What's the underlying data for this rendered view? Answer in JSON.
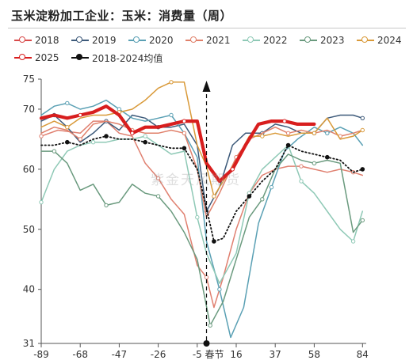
{
  "title": "玉米淀粉加工企业：玉米：消费量（周）",
  "watermark": "紫金天风期货",
  "legend": [
    {
      "name": "2018",
      "color": "#d84a4a",
      "style": "circle"
    },
    {
      "name": "2019",
      "color": "#3d5a7a",
      "style": "circle"
    },
    {
      "name": "2020",
      "color": "#5aa0b4",
      "style": "circle"
    },
    {
      "name": "2021",
      "color": "#e0806a",
      "style": "circle"
    },
    {
      "name": "2022",
      "color": "#8fc9b6",
      "style": "circle"
    },
    {
      "name": "2023",
      "color": "#6a9a7e",
      "style": "circle"
    },
    {
      "name": "2024",
      "color": "#d99a3a",
      "style": "circle"
    },
    {
      "name": "2025",
      "color": "#d81e1e",
      "style": "circle"
    },
    {
      "name": "2018-2024均值",
      "color": "#111111",
      "style": "dotted"
    }
  ],
  "chart_data": {
    "type": "line",
    "xlabel": "",
    "ylabel": "",
    "xlim": [
      -89,
      86
    ],
    "ylim": [
      31,
      75
    ],
    "xticks": [
      "-89",
      "-68",
      "-47",
      "-26",
      "-5",
      "16",
      "37",
      "58",
      "84"
    ],
    "xtick_values": [
      -89,
      -68,
      -47,
      -26,
      -5,
      16,
      37,
      58,
      84
    ],
    "yticks": [
      31,
      40,
      50,
      60,
      70,
      75
    ],
    "event_label": "春节",
    "event_x": 0,
    "series": [
      {
        "name": "2018",
        "color": "#e08070",
        "width": 1.5,
        "points": [
          [
            -89,
            65.5
          ],
          [
            -80,
            66.5
          ],
          [
            -68,
            66
          ],
          [
            -61,
            68
          ],
          [
            -54,
            68
          ],
          [
            -47,
            66
          ],
          [
            -40,
            65.5
          ],
          [
            -33,
            61
          ],
          [
            -26,
            58.5
          ],
          [
            -19,
            55
          ],
          [
            -12,
            52.5
          ],
          [
            -5,
            44
          ],
          [
            0,
            42
          ],
          [
            4,
            37
          ],
          [
            9,
            42
          ],
          [
            16,
            50
          ],
          [
            23,
            56
          ],
          [
            30,
            59
          ],
          [
            37,
            60
          ],
          [
            44,
            60.5
          ],
          [
            51,
            60.5
          ],
          [
            58,
            60
          ],
          [
            65,
            59.5
          ],
          [
            72,
            60
          ],
          [
            79,
            59.5
          ],
          [
            84,
            59
          ]
        ]
      },
      {
        "name": "2019",
        "color": "#3d5a7a",
        "width": 1.5,
        "points": [
          [
            -89,
            68
          ],
          [
            -82,
            69
          ],
          [
            -75,
            67
          ],
          [
            -68,
            64.5
          ],
          [
            -61,
            66
          ],
          [
            -54,
            68
          ],
          [
            -47,
            66.5
          ],
          [
            -40,
            69
          ],
          [
            -33,
            68.5
          ],
          [
            -26,
            67
          ],
          [
            -19,
            67
          ],
          [
            -12,
            67.5
          ],
          [
            -5,
            64
          ],
          [
            0,
            53
          ],
          [
            7,
            57
          ],
          [
            14,
            64
          ],
          [
            21,
            66
          ],
          [
            30,
            66
          ],
          [
            37,
            67.5
          ],
          [
            44,
            67
          ],
          [
            51,
            66
          ],
          [
            58,
            66
          ],
          [
            65,
            68.5
          ],
          [
            72,
            69
          ],
          [
            79,
            69
          ],
          [
            84,
            68.5
          ]
        ]
      },
      {
        "name": "2020",
        "color": "#5aa0b4",
        "width": 1.5,
        "points": [
          [
            -89,
            69
          ],
          [
            -82,
            70.5
          ],
          [
            -75,
            71
          ],
          [
            -68,
            70
          ],
          [
            -61,
            70.5
          ],
          [
            -54,
            71.5
          ],
          [
            -47,
            70
          ],
          [
            -40,
            68.5
          ],
          [
            -33,
            68
          ],
          [
            -26,
            68.5
          ],
          [
            -19,
            69
          ],
          [
            -12,
            66
          ],
          [
            -5,
            62
          ],
          [
            0,
            48
          ],
          [
            7,
            40
          ],
          [
            13,
            32
          ],
          [
            20,
            37
          ],
          [
            28,
            51
          ],
          [
            35,
            57
          ],
          [
            42,
            63
          ],
          [
            49,
            65
          ],
          [
            58,
            67
          ],
          [
            65,
            66
          ],
          [
            72,
            67
          ],
          [
            79,
            66
          ],
          [
            84,
            64
          ]
        ]
      },
      {
        "name": "2021",
        "color": "#e0806a",
        "width": 1.5,
        "points": [
          [
            -89,
            66
          ],
          [
            -82,
            67
          ],
          [
            -75,
            66.5
          ],
          [
            -68,
            65
          ],
          [
            -61,
            67.5
          ],
          [
            -54,
            68
          ],
          [
            -47,
            67.5
          ],
          [
            -40,
            66.5
          ],
          [
            -33,
            66
          ],
          [
            -26,
            66
          ],
          [
            -19,
            66.5
          ],
          [
            -12,
            66
          ],
          [
            -5,
            60
          ],
          [
            0,
            52
          ],
          [
            7,
            56
          ],
          [
            16,
            62
          ],
          [
            23,
            65
          ],
          [
            30,
            66
          ],
          [
            37,
            67
          ],
          [
            44,
            66
          ],
          [
            51,
            66.5
          ],
          [
            58,
            66
          ],
          [
            65,
            66.5
          ],
          [
            72,
            65.5
          ],
          [
            79,
            66
          ],
          [
            84,
            66.5
          ]
        ]
      },
      {
        "name": "2022",
        "color": "#8fc9b6",
        "width": 1.5,
        "points": [
          [
            -89,
            54.5
          ],
          [
            -82,
            60
          ],
          [
            -75,
            63
          ],
          [
            -68,
            64
          ],
          [
            -61,
            64.5
          ],
          [
            -54,
            64.5
          ],
          [
            -47,
            65
          ],
          [
            -40,
            65
          ],
          [
            -33,
            65.5
          ],
          [
            -26,
            64
          ],
          [
            -19,
            62.5
          ],
          [
            -12,
            63
          ],
          [
            -5,
            52
          ],
          [
            0,
            46
          ],
          [
            7,
            41
          ],
          [
            16,
            46
          ],
          [
            23,
            56
          ],
          [
            30,
            60
          ],
          [
            37,
            62
          ],
          [
            44,
            64
          ],
          [
            51,
            58
          ],
          [
            58,
            56
          ],
          [
            65,
            53
          ],
          [
            72,
            50
          ],
          [
            79,
            48
          ],
          [
            84,
            53
          ]
        ]
      },
      {
        "name": "2023",
        "color": "#6a9a7e",
        "width": 1.5,
        "points": [
          [
            -89,
            63
          ],
          [
            -82,
            63
          ],
          [
            -75,
            61
          ],
          [
            -68,
            56.5
          ],
          [
            -61,
            57.5
          ],
          [
            -54,
            54
          ],
          [
            -47,
            54.5
          ],
          [
            -40,
            57.5
          ],
          [
            -33,
            56
          ],
          [
            -26,
            55.5
          ],
          [
            -19,
            53
          ],
          [
            -12,
            49.5
          ],
          [
            -5,
            45
          ],
          [
            2,
            34
          ],
          [
            9,
            38
          ],
          [
            16,
            45
          ],
          [
            23,
            52
          ],
          [
            30,
            55
          ],
          [
            37,
            60
          ],
          [
            44,
            62.5
          ],
          [
            51,
            61.5
          ],
          [
            58,
            61
          ],
          [
            65,
            61.5
          ],
          [
            72,
            61
          ],
          [
            79,
            49.5
          ],
          [
            84,
            51.5
          ]
        ]
      },
      {
        "name": "2024",
        "color": "#d99a3a",
        "width": 1.5,
        "points": [
          [
            -89,
            67
          ],
          [
            -82,
            68
          ],
          [
            -75,
            67
          ],
          [
            -68,
            68.5
          ],
          [
            -61,
            69
          ],
          [
            -54,
            69
          ],
          [
            -47,
            69.5
          ],
          [
            -40,
            70
          ],
          [
            -33,
            71.5
          ],
          [
            -26,
            73.5
          ],
          [
            -19,
            74.5
          ],
          [
            -12,
            74.5
          ],
          [
            -5,
            64
          ],
          [
            0,
            60.5
          ],
          [
            4,
            55.5
          ],
          [
            9,
            58
          ],
          [
            16,
            61.5
          ],
          [
            23,
            65.5
          ],
          [
            30,
            65.5
          ],
          [
            37,
            66
          ],
          [
            44,
            65.5
          ],
          [
            51,
            66
          ],
          [
            58,
            66
          ],
          [
            65,
            68.5
          ],
          [
            72,
            65
          ],
          [
            79,
            65.5
          ],
          [
            84,
            66.5
          ]
        ]
      },
      {
        "name": "2025",
        "color": "#d81e1e",
        "width": 4.2,
        "points": [
          [
            -89,
            68.5
          ],
          [
            -82,
            69
          ],
          [
            -75,
            68.5
          ],
          [
            -68,
            69
          ],
          [
            -61,
            69.5
          ],
          [
            -54,
            70.5
          ],
          [
            -47,
            69
          ],
          [
            -40,
            66
          ],
          [
            -33,
            67
          ],
          [
            -26,
            67
          ],
          [
            -19,
            67.5
          ],
          [
            -12,
            68
          ],
          [
            -5,
            68
          ],
          [
            0,
            61
          ],
          [
            7,
            58
          ],
          [
            14,
            60
          ],
          [
            21,
            64
          ],
          [
            28,
            67.5
          ],
          [
            35,
            68
          ],
          [
            42,
            68
          ],
          [
            49,
            67.5
          ],
          [
            58,
            67.5
          ]
        ]
      },
      {
        "name": "2018-2024均值",
        "color": "#111111",
        "width": 1.8,
        "dashed": true,
        "points": [
          [
            -89,
            64
          ],
          [
            -82,
            64
          ],
          [
            -75,
            64.5
          ],
          [
            -68,
            64
          ],
          [
            -61,
            65
          ],
          [
            -54,
            65.5
          ],
          [
            -47,
            65
          ],
          [
            -40,
            65
          ],
          [
            -33,
            64.5
          ],
          [
            -26,
            64
          ],
          [
            -19,
            63.5
          ],
          [
            -12,
            63.5
          ],
          [
            -5,
            60
          ],
          [
            0,
            53.5
          ],
          [
            4,
            48
          ],
          [
            9,
            48.5
          ],
          [
            16,
            53
          ],
          [
            23,
            55.5
          ],
          [
            30,
            58
          ],
          [
            37,
            60
          ],
          [
            44,
            64
          ],
          [
            51,
            63
          ],
          [
            58,
            62.5
          ],
          [
            65,
            62
          ],
          [
            72,
            61.5
          ],
          [
            79,
            59.5
          ],
          [
            84,
            60
          ]
        ]
      }
    ]
  }
}
